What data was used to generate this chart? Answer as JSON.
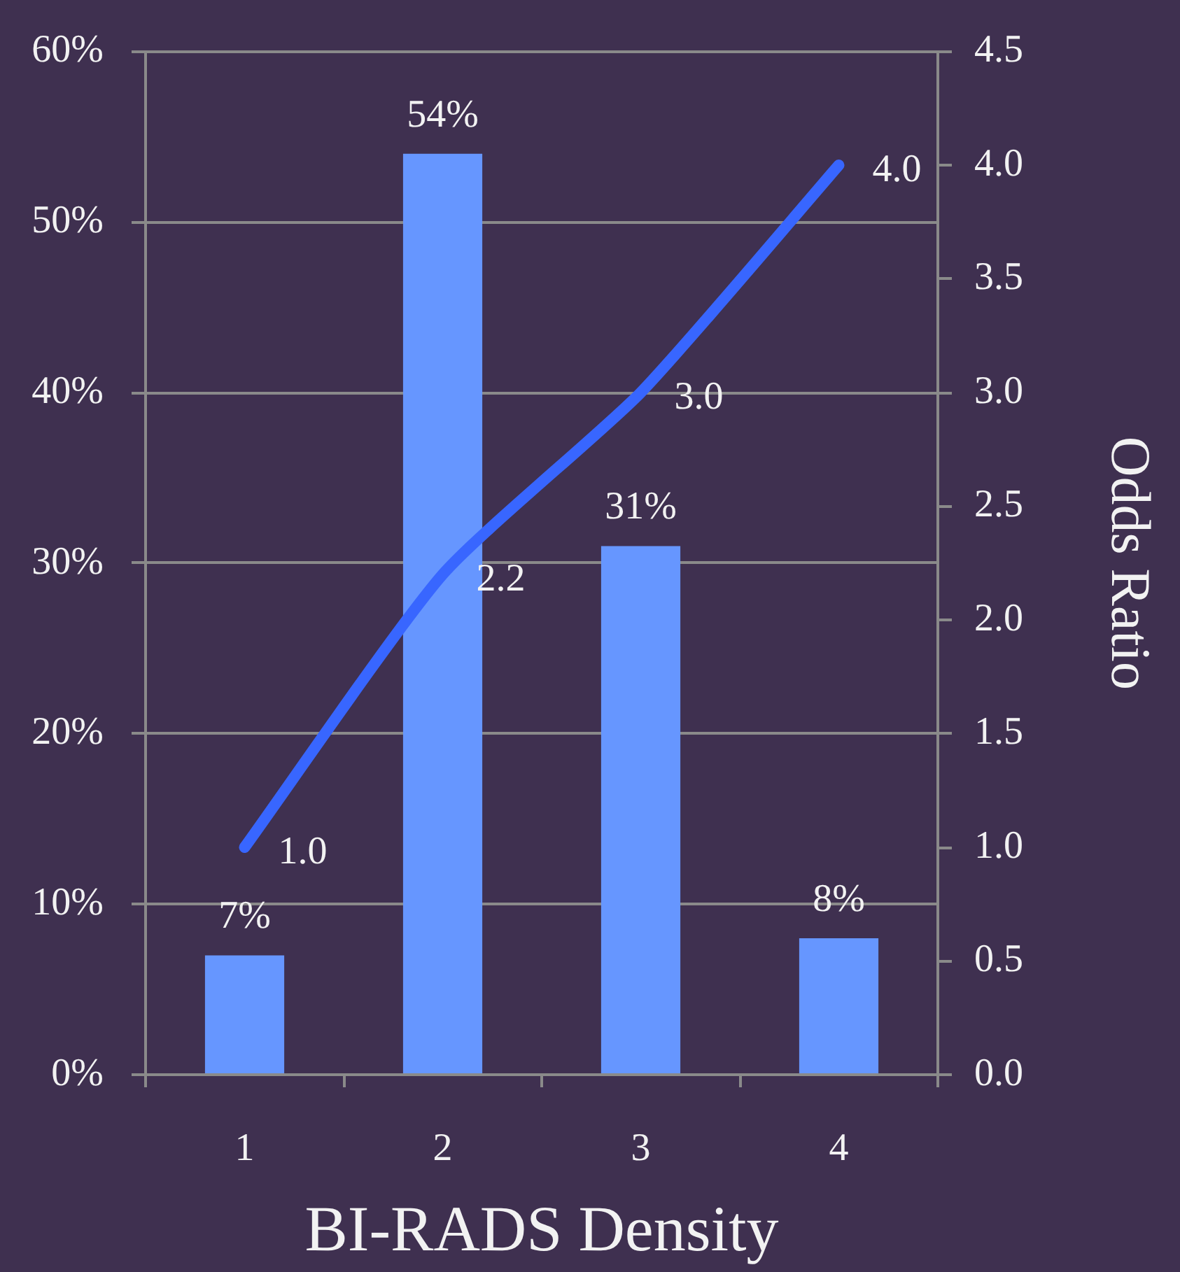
{
  "chart_data": {
    "type": "bar",
    "xlabel": "BI-RADS Density",
    "y2label": "Odds Ratio",
    "categories": [
      "1",
      "2",
      "3",
      "4"
    ],
    "series": [
      {
        "color": "#6696ff",
        "values": [
          7,
          54,
          31,
          8
        ],
        "value_labels": [
          "7%",
          "54%",
          "31%",
          "8%"
        ]
      },
      {
        "type": "line",
        "axis": "y2",
        "color": "#3866ff",
        "values": [
          1.0,
          2.2,
          3.0,
          4.0
        ],
        "value_labels": [
          "1.0",
          "2.2",
          "3.0",
          "4.0"
        ]
      }
    ],
    "ylim": [
      0,
      60
    ],
    "yticks": [
      {
        "value": 0,
        "label": "0%"
      },
      {
        "value": 10,
        "label": "10%"
      },
      {
        "value": 20,
        "label": "20%"
      },
      {
        "value": 30,
        "label": "30%"
      },
      {
        "value": 40,
        "label": "40%"
      },
      {
        "value": 50,
        "label": "50%"
      },
      {
        "value": 60,
        "label": "60%"
      }
    ],
    "y2lim": [
      0,
      4.5
    ],
    "y2ticks": [
      {
        "value": 0,
        "label": "0.0"
      },
      0.5,
      {
        "value": 1,
        "label": "1.0"
      },
      1.5,
      {
        "value": 2,
        "label": "2.0"
      },
      2.5,
      {
        "value": 3,
        "label": "3.0"
      },
      3.5,
      {
        "value": 4,
        "label": "4.0"
      },
      4.5
    ],
    "grid": "y",
    "marker": "none"
  }
}
